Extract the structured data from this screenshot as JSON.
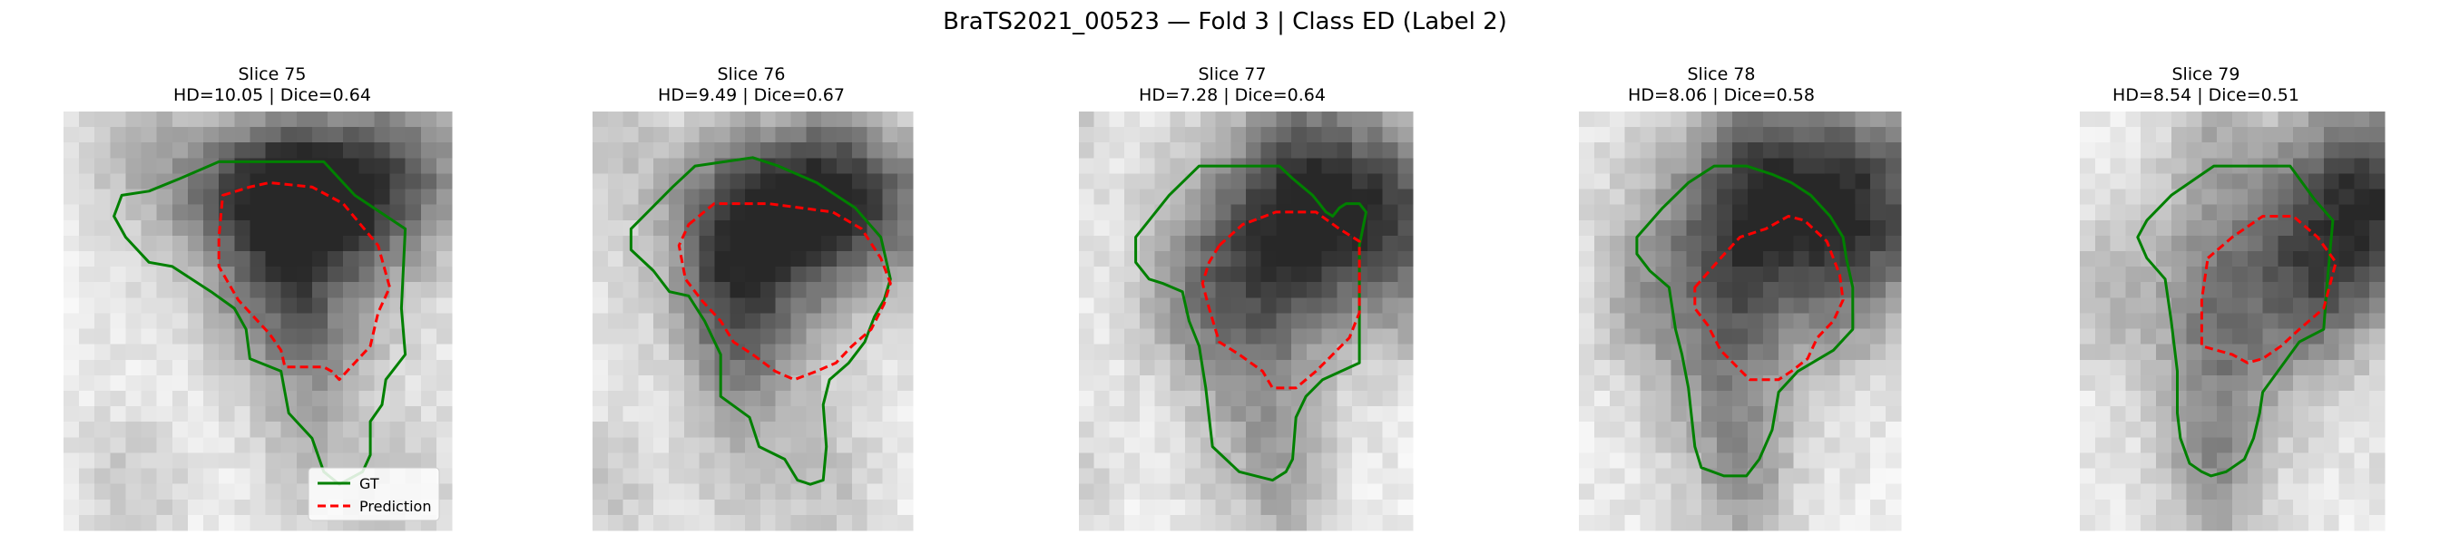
{
  "figure": {
    "title": "BraTS2021_00523 — Fold 3 | Class ED (Label 2)"
  },
  "legend": {
    "gt_label": "GT",
    "prediction_label": "Prediction"
  },
  "colors": {
    "gt": "#008000",
    "prediction": "#ff0000",
    "legend_border": "#cccccc"
  },
  "chart_data": [
    {
      "type": "image-overlay",
      "title": "Slice 75",
      "subtitle": "HD=10.05 | Dice=0.64",
      "slice": 75,
      "metrics": {
        "HD": 10.05,
        "Dice": 0.64
      },
      "series": [
        {
          "name": "GT"
        },
        {
          "name": "Prediction"
        }
      ],
      "legend": "lower right"
    },
    {
      "type": "image-overlay",
      "title": "Slice 76",
      "subtitle": "HD=9.49 | Dice=0.67",
      "slice": 76,
      "metrics": {
        "HD": 9.49,
        "Dice": 0.67
      }
    },
    {
      "type": "image-overlay",
      "title": "Slice 77",
      "subtitle": "HD=7.28 | Dice=0.64",
      "slice": 77,
      "metrics": {
        "HD": 7.28,
        "Dice": 0.64
      }
    },
    {
      "type": "image-overlay",
      "title": "Slice 78",
      "subtitle": "HD=8.06 | Dice=0.58",
      "slice": 78,
      "metrics": {
        "HD": 8.06,
        "Dice": 0.58
      }
    },
    {
      "type": "image-overlay",
      "title": "Slice 79",
      "subtitle": "HD=8.54 | Dice=0.51",
      "slice": 79,
      "metrics": {
        "HD": 8.54,
        "Dice": 0.51
      }
    }
  ]
}
